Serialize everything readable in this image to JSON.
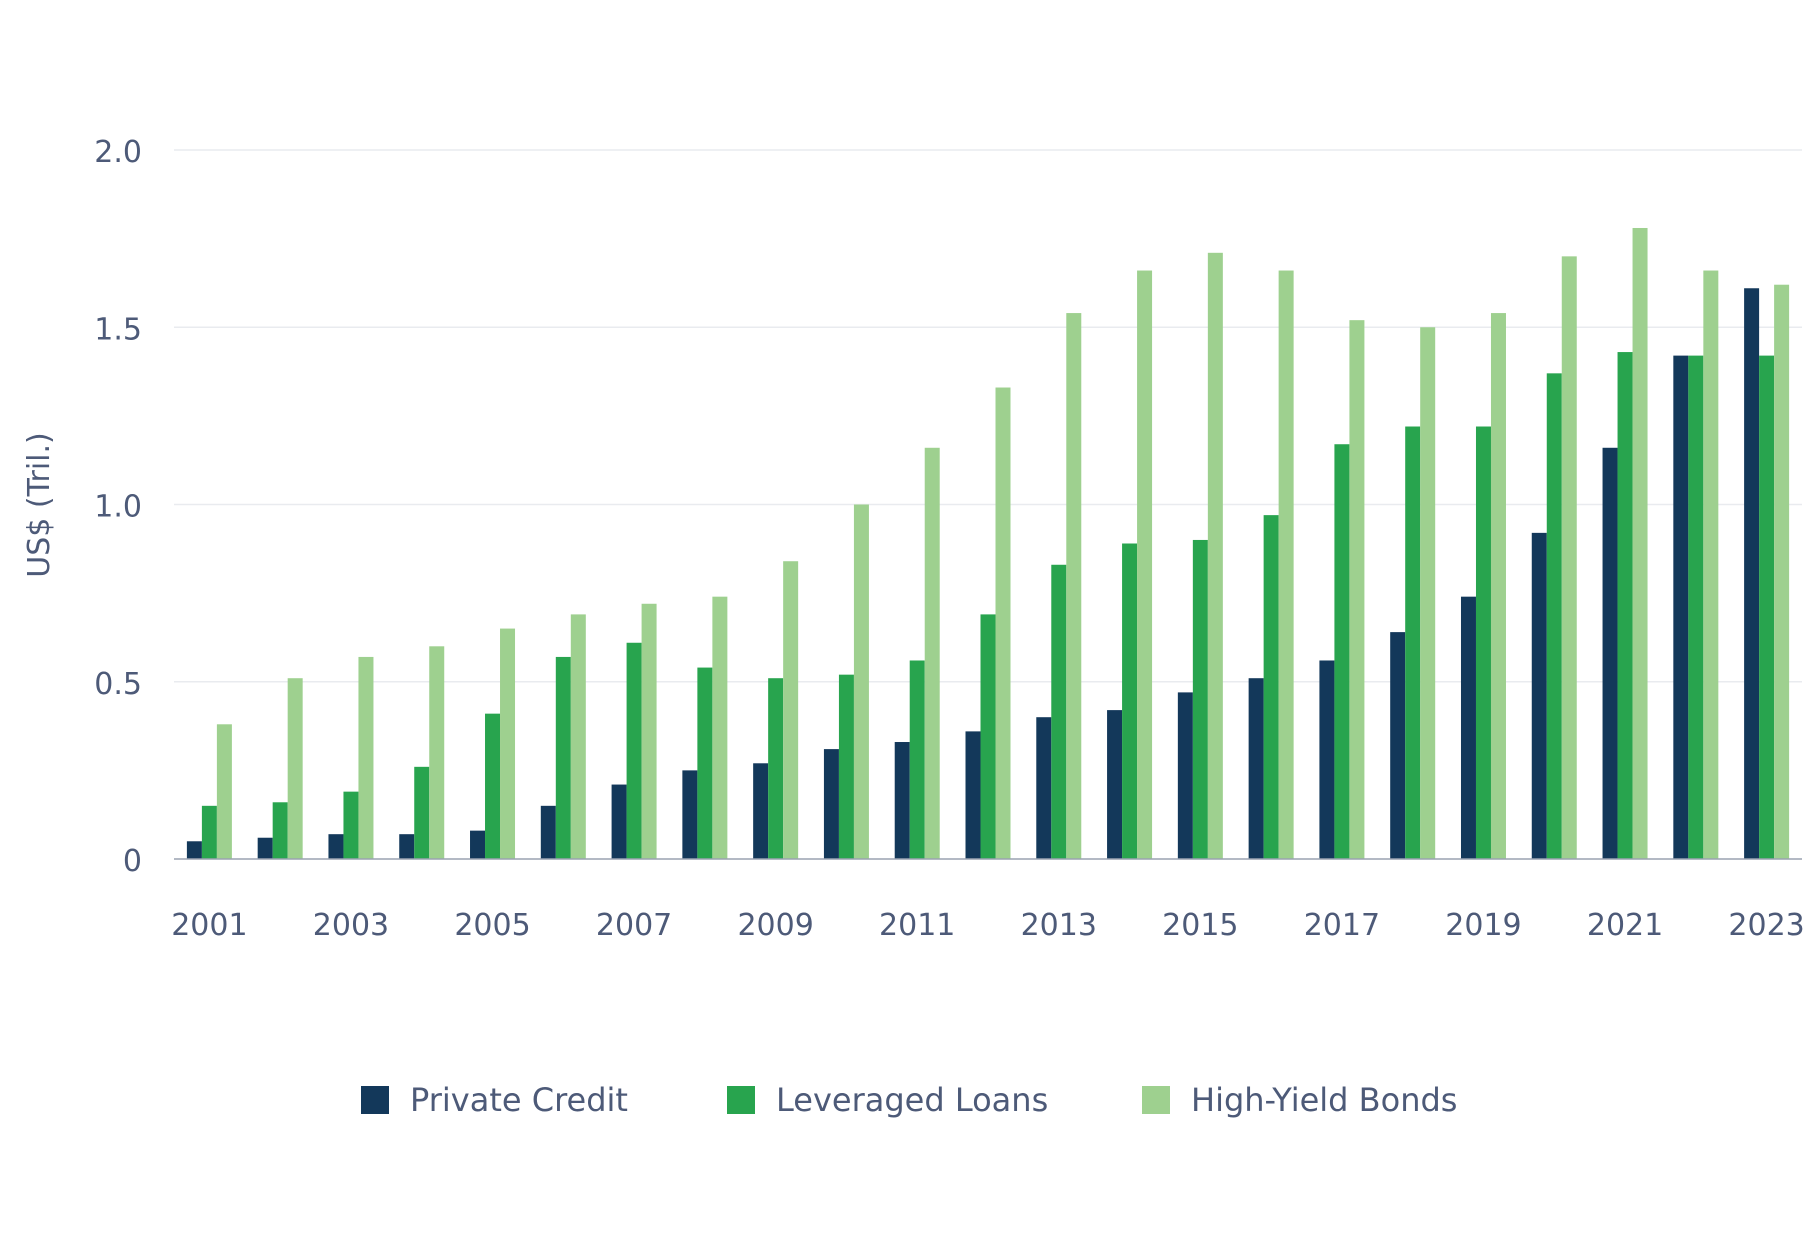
{
  "chart_data": {
    "type": "bar",
    "ylabel": "US$ (Tril.)",
    "ylim": [
      0,
      2.0
    ],
    "yticks": [
      0,
      0.5,
      1.0,
      1.5,
      2.0
    ],
    "ytick_labels": [
      "0",
      "0.5",
      "1.0",
      "1.5",
      "2.0"
    ],
    "grid": true,
    "legend_position": "bottom",
    "categories": [
      "2001",
      "2002",
      "2003",
      "2004",
      "2005",
      "2006",
      "2007",
      "2008",
      "2009",
      "2010",
      "2011",
      "2012",
      "2013",
      "2014",
      "2015",
      "2016",
      "2017",
      "2018",
      "2019",
      "2020",
      "2021",
      "2022",
      "2023"
    ],
    "xtick_labels": [
      "2001",
      "2003",
      "2005",
      "2007",
      "2009",
      "2011",
      "2013",
      "2015",
      "2017",
      "2019",
      "2021",
      "2023"
    ],
    "series": [
      {
        "name": "Private Credit",
        "color": "#13385a",
        "values": [
          0.05,
          0.06,
          0.07,
          0.07,
          0.08,
          0.15,
          0.21,
          0.25,
          0.27,
          0.31,
          0.33,
          0.36,
          0.4,
          0.42,
          0.47,
          0.51,
          0.56,
          0.64,
          0.74,
          0.92,
          1.16,
          1.42,
          1.61
        ]
      },
      {
        "name": "Leveraged Loans",
        "color": "#28a44e",
        "values": [
          0.15,
          0.16,
          0.19,
          0.26,
          0.41,
          0.57,
          0.61,
          0.54,
          0.51,
          0.52,
          0.56,
          0.69,
          0.83,
          0.89,
          0.9,
          0.97,
          1.17,
          1.22,
          1.22,
          1.37,
          1.43,
          1.42,
          1.42
        ]
      },
      {
        "name": "High-Yield Bonds",
        "color": "#9ed08f",
        "values": [
          0.38,
          0.51,
          0.57,
          0.6,
          0.65,
          0.69,
          0.72,
          0.74,
          0.84,
          1.0,
          1.16,
          1.33,
          1.54,
          1.66,
          1.71,
          1.66,
          1.52,
          1.5,
          1.54,
          1.7,
          1.78,
          1.66,
          1.62
        ]
      }
    ]
  }
}
